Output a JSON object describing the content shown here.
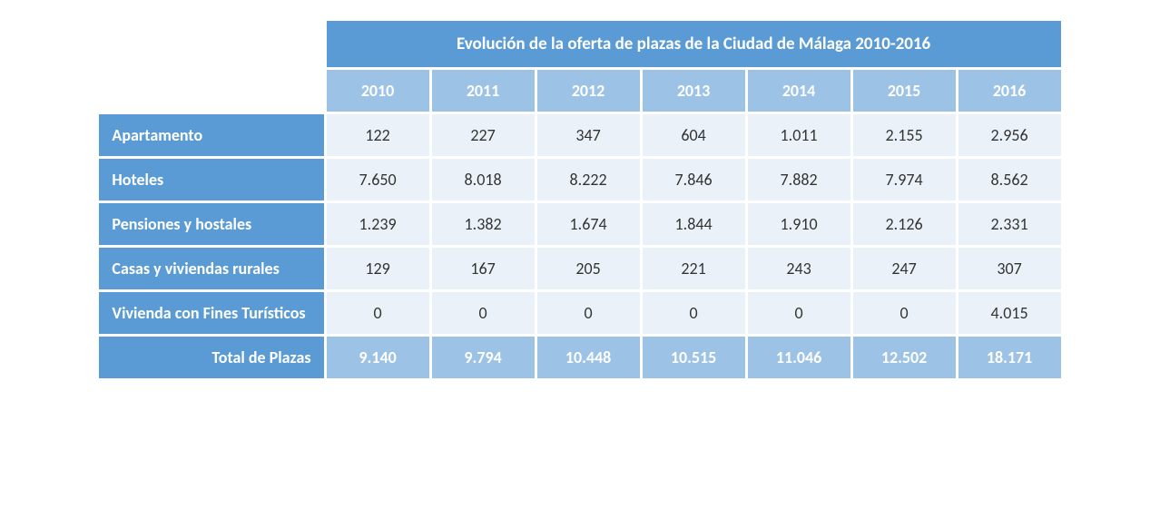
{
  "table": {
    "title": "Evolución de la oferta de plazas de la Ciudad de Málaga 2010-2016",
    "years": [
      "2010",
      "2011",
      "2012",
      "2013",
      "2014",
      "2015",
      "2016"
    ],
    "rows": [
      {
        "label": "Apartamento",
        "values": [
          "122",
          "227",
          "347",
          "604",
          "1.011",
          "2.155",
          "2.956"
        ]
      },
      {
        "label": "Hoteles",
        "values": [
          "7.650",
          "8.018",
          "8.222",
          "7.846",
          "7.882",
          "7.974",
          "8.562"
        ]
      },
      {
        "label": "Pensiones  y hostales",
        "values": [
          "1.239",
          "1.382",
          "1.674",
          "1.844",
          "1.910",
          "2.126",
          "2.331"
        ]
      },
      {
        "label": "Casas y viviendas rurales",
        "values": [
          "129",
          "167",
          "205",
          "221",
          "243",
          "247",
          "307"
        ]
      },
      {
        "label": "Vivienda con Fines Turísticos",
        "values": [
          "0",
          "0",
          "0",
          "0",
          "0",
          "0",
          "4.015"
        ]
      }
    ],
    "total": {
      "label": "Total de Plazas",
      "values": [
        "9.140",
        "9.794",
        "10.448",
        "10.515",
        "11.046",
        "12.502",
        "18.171"
      ]
    },
    "colors": {
      "header_bg": "#5b9bd5",
      "subheader_bg": "#9cc3e6",
      "data_bg": "#eaf1f8",
      "header_text": "#ffffff",
      "data_text": "#333333"
    },
    "font_size_title": 19,
    "font_size_body": 18
  }
}
